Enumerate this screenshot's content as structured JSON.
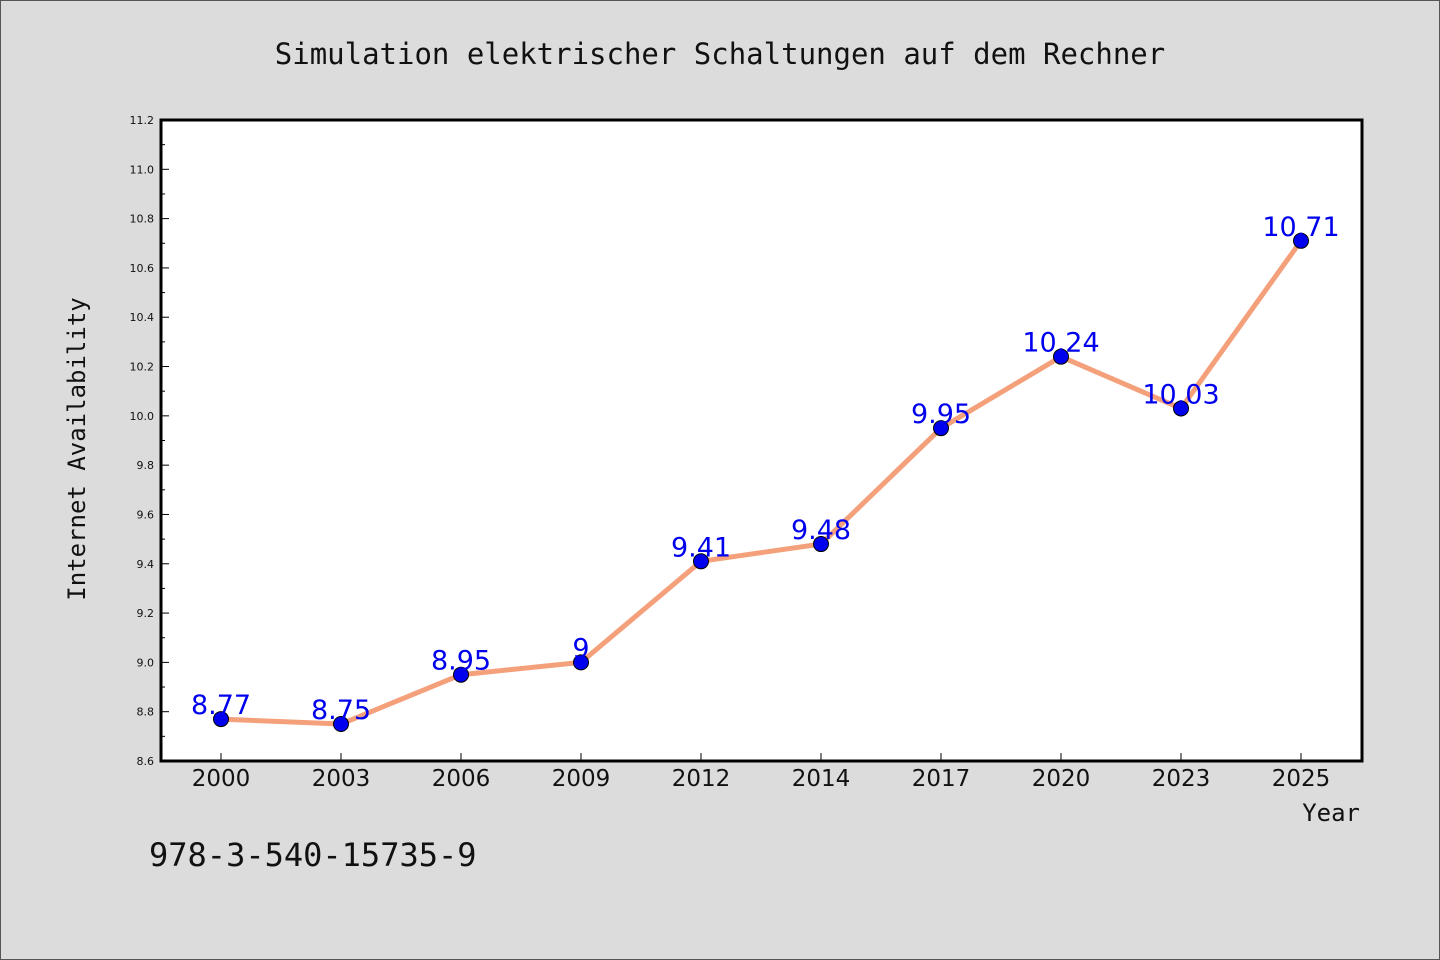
{
  "chart_data": {
    "type": "line",
    "title": "Simulation elektrischer Schaltungen auf dem Rechner",
    "xlabel": "Year",
    "ylabel": "Internet Availability",
    "categories": [
      "2000",
      "2003",
      "2006",
      "2009",
      "2012",
      "2014",
      "2017",
      "2020",
      "2023",
      "2025"
    ],
    "series": [
      {
        "values": [
          8.77,
          8.75,
          8.95,
          9,
          9.41,
          9.48,
          9.95,
          10.24,
          10.03,
          10.71
        ],
        "labels": [
          "8.77",
          "8.75",
          "8.95",
          "9",
          "9.41",
          "9.48",
          "9.95",
          "10.24",
          "10.03",
          "10.71"
        ]
      }
    ],
    "ylim": [
      8.6,
      11.2
    ],
    "yticks": [
      "8.6",
      "8.8",
      "9.0",
      "9.2",
      "9.4",
      "9.6",
      "9.8",
      "10.0",
      "10.2",
      "10.4",
      "10.6",
      "10.8",
      "11.0",
      "11.2"
    ],
    "grid": false,
    "colors": {
      "line": "#f4a07a",
      "marker": "#0000ee",
      "label": "#0000ee",
      "plot_background": "#ffffff",
      "figure_background": "#dcdcdc"
    }
  },
  "footer": {
    "isbn": "978-3-540-15735-9"
  }
}
